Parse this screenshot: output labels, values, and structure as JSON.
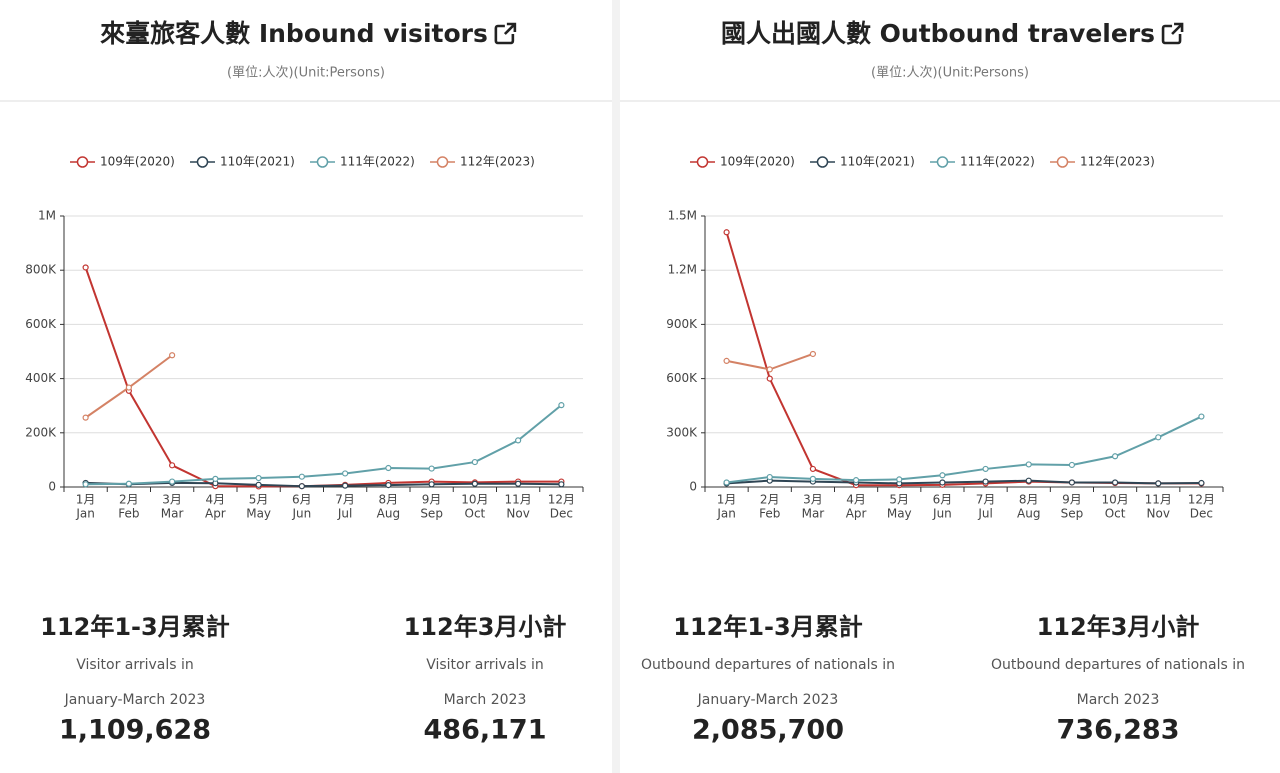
{
  "chart_data": [
    {
      "type": "line",
      "title": "來臺旅客人數 Inbound visitors",
      "subtitle": "(單位:人次)(Unit:Persons)",
      "categories": [
        "1月",
        "2月",
        "3月",
        "4月",
        "5月",
        "6月",
        "7月",
        "8月",
        "9月",
        "10月",
        "11月",
        "12月"
      ],
      "categories_en": [
        "Jan",
        "Feb",
        "Mar",
        "Apr",
        "May",
        "Jun",
        "Jul",
        "Aug",
        "Sep",
        "Oct",
        "Nov",
        "Dec"
      ],
      "ylim": [
        0,
        1000000
      ],
      "yticks": [
        0,
        {
          "value": 200000,
          "label": "200K"
        },
        {
          "value": 400000,
          "label": "400K"
        },
        {
          "value": 600000,
          "label": "600K"
        },
        {
          "value": 800000,
          "label": "800K"
        },
        {
          "value": 1000000,
          "label": "1M"
        }
      ],
      "grid": true,
      "legend": "top",
      "series": [
        {
          "name": "109年(2020)",
          "color": "#c23531",
          "values": [
            810000,
            355000,
            80000,
            3000,
            2000,
            3000,
            8000,
            15000,
            20000,
            17000,
            20000,
            20000
          ]
        },
        {
          "name": "110年(2021)",
          "color": "#2f4554",
          "values": [
            15000,
            10000,
            15000,
            14000,
            8000,
            3000,
            5000,
            7000,
            10000,
            12000,
            12000,
            10000
          ]
        },
        {
          "name": "111年(2022)",
          "color": "#61a0a8",
          "values": [
            10000,
            12000,
            20000,
            30000,
            33000,
            38000,
            50000,
            70000,
            68000,
            92000,
            172000,
            302000
          ]
        },
        {
          "name": "112年(2023)",
          "color": "#d48265",
          "values": [
            256000,
            367000,
            486171,
            null,
            null,
            null,
            null,
            null,
            null,
            null,
            null,
            null
          ]
        }
      ]
    },
    {
      "type": "line",
      "title": "國人出國人數 Outbound travelers",
      "subtitle": "(單位:人次)(Unit:Persons)",
      "categories": [
        "1月",
        "2月",
        "3月",
        "4月",
        "5月",
        "6月",
        "7月",
        "8月",
        "9月",
        "10月",
        "11月",
        "12月"
      ],
      "categories_en": [
        "Jan",
        "Feb",
        "Mar",
        "Apr",
        "May",
        "Jun",
        "Jul",
        "Aug",
        "Sep",
        "Oct",
        "Nov",
        "Dec"
      ],
      "ylim": [
        0,
        1500000
      ],
      "yticks": [
        0,
        {
          "value": 300000,
          "label": "300K"
        },
        {
          "value": 600000,
          "label": "600K"
        },
        {
          "value": 900000,
          "label": "900K"
        },
        {
          "value": 1200000,
          "label": "1.2M"
        },
        {
          "value": 1500000,
          "label": "1.5M"
        }
      ],
      "grid": true,
      "legend": "top",
      "series": [
        {
          "name": "109年(2020)",
          "color": "#c23531",
          "values": [
            1410000,
            600000,
            100000,
            10000,
            10000,
            12000,
            20000,
            30000,
            25000,
            22000,
            20000,
            20000
          ]
        },
        {
          "name": "110年(2021)",
          "color": "#2f4554",
          "values": [
            20000,
            35000,
            30000,
            25000,
            20000,
            25000,
            30000,
            35000,
            25000,
            25000,
            20000,
            22000
          ]
        },
        {
          "name": "111年(2022)",
          "color": "#61a0a8",
          "values": [
            25000,
            55000,
            45000,
            38000,
            42000,
            65000,
            100000,
            125000,
            122000,
            170000,
            275000,
            390000
          ]
        },
        {
          "name": "112年(2023)",
          "color": "#d48265",
          "values": [
            698000,
            651000,
            736283,
            null,
            null,
            null,
            null,
            null,
            null,
            null,
            null,
            null
          ]
        }
      ]
    }
  ],
  "summaries": [
    [
      {
        "heading": "112年1-3月累計",
        "caption": "Visitor arrivals in",
        "period": "January-March 2023",
        "value": "1,109,628"
      },
      {
        "heading": "112年3月小計",
        "caption": "Visitor arrivals in",
        "period": "March 2023",
        "value": "486,171"
      }
    ],
    [
      {
        "heading": "112年1-3月累計",
        "caption": "Outbound departures of nationals in",
        "period": "January-March 2023",
        "value": "2,085,700"
      },
      {
        "heading": "112年3月小計",
        "caption": "Outbound departures of nationals in",
        "period": "March 2023",
        "value": "736,283"
      }
    ]
  ]
}
